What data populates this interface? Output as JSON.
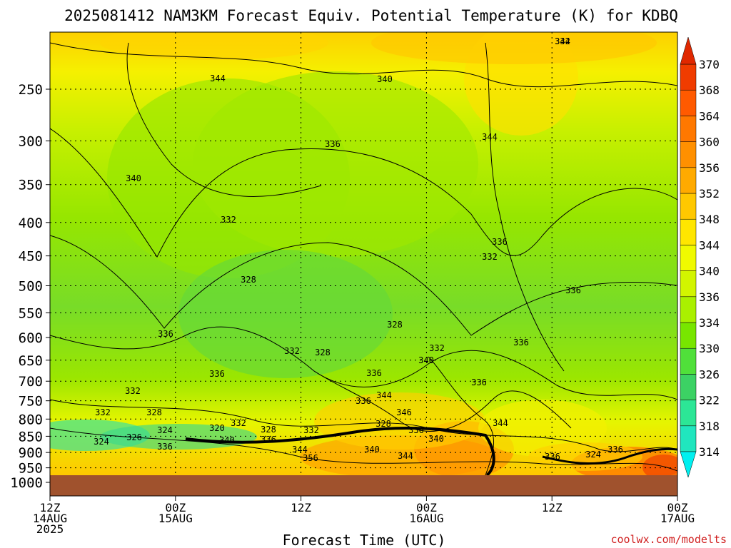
{
  "chart_data": {
    "type": "heatmap",
    "title": "2025081412 NAM3KM Forecast Equiv. Potential Temperature (K) for KDBQ",
    "xlabel": "Forecast Time (UTC)",
    "ylabel": "",
    "y_axis": {
      "scale": "pressure (log)",
      "range": [
        1000,
        200
      ],
      "ticks": [
        "250",
        "300",
        "350",
        "400",
        "450",
        "500",
        "550",
        "600",
        "650",
        "700",
        "750",
        "800",
        "850",
        "900",
        "950",
        "1000"
      ]
    },
    "x_axis": {
      "range_hours": [
        0,
        60
      ],
      "ticks": [
        {
          "hour": 0,
          "lines": [
            "12Z",
            "14AUG",
            "2025"
          ]
        },
        {
          "hour": 12,
          "lines": [
            "00Z",
            "15AUG"
          ]
        },
        {
          "hour": 24,
          "lines": [
            "12Z"
          ]
        },
        {
          "hour": 36,
          "lines": [
            "00Z",
            "16AUG"
          ]
        },
        {
          "hour": 48,
          "lines": [
            "12Z"
          ]
        },
        {
          "hour": 60,
          "lines": [
            "00Z",
            "17AUG"
          ]
        }
      ]
    },
    "grid": true,
    "colorbar": {
      "levels": [
        "314",
        "318",
        "322",
        "326",
        "330",
        "334",
        "336",
        "340",
        "344",
        "348",
        "352",
        "356",
        "360",
        "364",
        "368",
        "370"
      ],
      "colors": [
        "#20e6be",
        "#2ce696",
        "#3cd264",
        "#50e03a",
        "#78e600",
        "#aaf000",
        "#d2f500",
        "#f0fa00",
        "#ffe600",
        "#ffc800",
        "#ffaa00",
        "#ff9000",
        "#ff7800",
        "#ff5a00",
        "#f03c00",
        "#e02800"
      ]
    },
    "contour_labels": [
      "344",
      "340",
      "344",
      "344",
      "336",
      "340",
      "332",
      "336",
      "332",
      "328",
      "336",
      "336",
      "328",
      "332",
      "328",
      "336",
      "332",
      "340",
      "336",
      "336",
      "336",
      "332",
      "344",
      "336",
      "332",
      "328",
      "346",
      "324",
      "320",
      "332",
      "326",
      "324",
      "328",
      "336",
      "332",
      "336",
      "340",
      "328",
      "336",
      "340",
      "344",
      "356",
      "340",
      "344",
      "344",
      "336",
      "324",
      "336",
      "332"
    ]
  },
  "credit": "coolwx.com/modelts"
}
